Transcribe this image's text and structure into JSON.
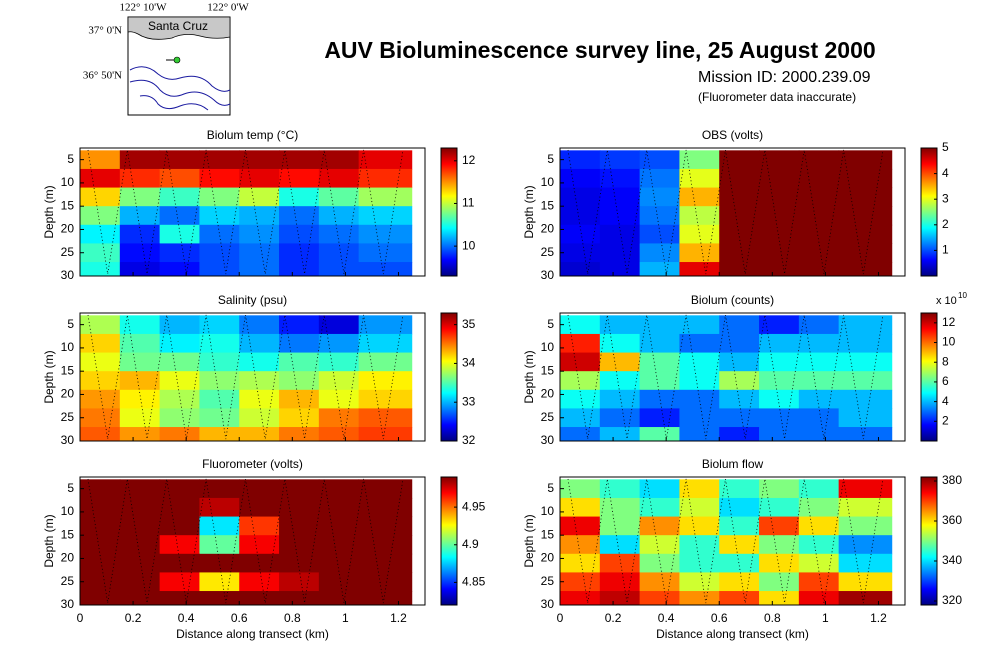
{
  "header": {
    "title": "AUV Bioluminescence survey line, 25 August 2000",
    "mission": "Mission ID: 2000.239.09",
    "note": "(Fluorometer data inaccurate)"
  },
  "map": {
    "lon_labels": [
      "122° 10'W",
      "122° 0'W"
    ],
    "lat_labels": [
      "37° 0'N",
      "36° 50'N"
    ],
    "place": "Santa Cruz"
  },
  "chart_data": [
    {
      "type": "heatmap",
      "title": "Biolum temp (°C)",
      "ylabel": "Depth (m)",
      "colormap": "jet",
      "xlim": [
        0,
        1.3
      ],
      "xticks": [
        0,
        0.2,
        0.4,
        0.6,
        0.8,
        1,
        1.2
      ],
      "ylim": [
        2.5,
        30
      ],
      "yticks": [
        5,
        10,
        15,
        20,
        25,
        30
      ],
      "clim": [
        9.3,
        12.3
      ],
      "cticks": [
        10,
        11,
        12
      ],
      "x_bins": [
        0,
        0.15,
        0.3,
        0.45,
        0.6,
        0.75,
        0.9,
        1.05,
        1.25
      ],
      "depth_bins": [
        3,
        7,
        11,
        15,
        19,
        23,
        27,
        30
      ],
      "values": [
        [
          11.5,
          12.2,
          12.2,
          12.2,
          12.2,
          12.2,
          12.2,
          12.0
        ],
        [
          12.0,
          11.8,
          11.7,
          11.9,
          12.0,
          11.9,
          12.0,
          11.8
        ],
        [
          11.3,
          10.8,
          10.6,
          10.8,
          11.0,
          10.5,
          10.7,
          10.9
        ],
        [
          10.8,
          10.2,
          10.0,
          10.3,
          10.2,
          10.0,
          10.2,
          10.3
        ],
        [
          10.4,
          9.8,
          10.5,
          10.0,
          10.1,
          9.9,
          10.0,
          10.1
        ],
        [
          10.6,
          9.7,
          9.8,
          9.9,
          10.0,
          9.8,
          9.9,
          10.0
        ],
        [
          10.5,
          9.6,
          9.7,
          9.9,
          10.0,
          9.8,
          9.9,
          9.9
        ]
      ]
    },
    {
      "type": "heatmap",
      "title": "OBS (volts)",
      "ylabel": "Depth (m)",
      "colormap": "jet",
      "xlim": [
        0,
        1.3
      ],
      "xticks": [
        0,
        0.2,
        0.4,
        0.6,
        0.8,
        1,
        1.2
      ],
      "ylim": [
        2.5,
        30
      ],
      "yticks": [
        5,
        10,
        15,
        20,
        25,
        30
      ],
      "clim": [
        0,
        5
      ],
      "cticks": [
        1,
        2,
        3,
        4,
        5
      ],
      "x_bins": [
        0,
        0.15,
        0.3,
        0.45,
        0.6,
        0.75,
        0.9,
        1.05,
        1.25
      ],
      "depth_bins": [
        3,
        7,
        11,
        15,
        19,
        23,
        27,
        30
      ],
      "values": [
        [
          0.8,
          0.9,
          1.0,
          2.5,
          5,
          5,
          5,
          5
        ],
        [
          0.6,
          0.7,
          1.2,
          3.0,
          5,
          5,
          5,
          5
        ],
        [
          0.5,
          0.6,
          1.3,
          3.5,
          5,
          5,
          5,
          5
        ],
        [
          0.5,
          0.6,
          1.2,
          2.8,
          5,
          5,
          5,
          5
        ],
        [
          0.6,
          0.5,
          1.0,
          3.0,
          5,
          5,
          5,
          5
        ],
        [
          0.5,
          0.5,
          1.3,
          3.5,
          5,
          5,
          5,
          5
        ],
        [
          0.4,
          0.5,
          1.5,
          4.5,
          5,
          5,
          5,
          5
        ]
      ]
    },
    {
      "type": "heatmap",
      "title": "Salinity (psu)",
      "ylabel": "Depth (m)",
      "colormap": "jet",
      "xlim": [
        0,
        1.3
      ],
      "xticks": [
        0,
        0.2,
        0.4,
        0.6,
        0.8,
        1,
        1.2
      ],
      "ylim": [
        2.5,
        30
      ],
      "yticks": [
        5,
        10,
        15,
        20,
        25,
        30
      ],
      "clim": [
        32,
        35.3
      ],
      "cticks": [
        32,
        33,
        34,
        35
      ],
      "x_bins": [
        0,
        0.15,
        0.3,
        0.45,
        0.6,
        0.75,
        0.9,
        1.05,
        1.25
      ],
      "depth_bins": [
        3,
        7,
        11,
        15,
        19,
        23,
        27,
        30
      ],
      "values": [
        [
          33.8,
          33.3,
          33.0,
          33.1,
          32.8,
          32.5,
          32.3,
          32.9
        ],
        [
          34.2,
          33.5,
          33.2,
          33.3,
          33.0,
          32.8,
          32.9,
          33.1
        ],
        [
          34.0,
          33.6,
          33.6,
          33.4,
          33.3,
          33.5,
          33.4,
          33.6
        ],
        [
          34.2,
          34.3,
          34.0,
          33.7,
          33.8,
          33.7,
          33.9,
          34.1
        ],
        [
          34.4,
          34.1,
          33.8,
          33.5,
          34.0,
          34.3,
          34.0,
          34.2
        ],
        [
          34.5,
          34.0,
          33.7,
          33.6,
          33.9,
          34.2,
          34.5,
          34.6
        ],
        [
          34.6,
          34.4,
          34.5,
          34.3,
          34.3,
          34.5,
          34.6,
          34.7
        ]
      ]
    },
    {
      "type": "heatmap",
      "title": "Biolum (counts)",
      "ylabel": "Depth (m)",
      "colormap": "jet",
      "xlim": [
        0,
        1.3
      ],
      "xticks": [
        0,
        0.2,
        0.4,
        0.6,
        0.8,
        1,
        1.2
      ],
      "ylim": [
        2.5,
        30
      ],
      "yticks": [
        5,
        10,
        15,
        20,
        25,
        30
      ],
      "clim": [
        0,
        13
      ],
      "cticks": [
        2,
        4,
        6,
        8,
        10,
        12
      ],
      "multiplier": "x 10",
      "multiplier_exponent": "10",
      "x_bins": [
        0,
        0.15,
        0.3,
        0.45,
        0.6,
        0.75,
        0.9,
        1.05,
        1.25
      ],
      "depth_bins": [
        3,
        7,
        11,
        15,
        19,
        23,
        27,
        30
      ],
      "values": [
        [
          5,
          4,
          4,
          4,
          3,
          2,
          3,
          4
        ],
        [
          11,
          5,
          4,
          3,
          3,
          4,
          4,
          4
        ],
        [
          12,
          9,
          6,
          5,
          4,
          5,
          5,
          5
        ],
        [
          7,
          5,
          6,
          5,
          7,
          6,
          6,
          6
        ],
        [
          5,
          4,
          3,
          3,
          4,
          5,
          4,
          4
        ],
        [
          4,
          3,
          2,
          3,
          3,
          3,
          3,
          4
        ],
        [
          3,
          4,
          6,
          3,
          2,
          3,
          3,
          3
        ]
      ]
    },
    {
      "type": "heatmap",
      "title": "Fluorometer (volts)",
      "ylabel": "Depth (m)",
      "xlabel": "Distance along transect (km)",
      "colormap": "jet",
      "xlim": [
        0,
        1.3
      ],
      "xticks": [
        0,
        0.2,
        0.4,
        0.6,
        0.8,
        1,
        1.2
      ],
      "ylim": [
        2.5,
        30
      ],
      "yticks": [
        5,
        10,
        15,
        20,
        25,
        30
      ],
      "clim": [
        4.82,
        4.99
      ],
      "cticks": [
        4.85,
        4.9,
        4.95
      ],
      "x_bins": [
        0,
        0.15,
        0.3,
        0.45,
        0.6,
        0.75,
        0.9,
        1.05,
        1.25
      ],
      "depth_bins": [
        3,
        7,
        11,
        15,
        19,
        23,
        27,
        30
      ],
      "values": [
        [
          4.99,
          4.99,
          4.99,
          4.99,
          4.99,
          4.99,
          4.99,
          4.99
        ],
        [
          4.99,
          4.99,
          4.99,
          4.98,
          4.99,
          4.99,
          4.99,
          4.99
        ],
        [
          4.99,
          4.99,
          4.99,
          4.88,
          4.96,
          4.99,
          4.99,
          4.99
        ],
        [
          4.99,
          4.99,
          4.97,
          4.9,
          4.97,
          4.99,
          4.99,
          4.99
        ],
        [
          4.99,
          4.99,
          4.99,
          4.99,
          4.99,
          4.99,
          4.99,
          4.99
        ],
        [
          4.99,
          4.99,
          4.97,
          4.93,
          4.97,
          4.98,
          4.99,
          4.99
        ],
        [
          4.99,
          4.99,
          4.99,
          4.99,
          4.99,
          4.99,
          4.99,
          4.99
        ]
      ]
    },
    {
      "type": "heatmap",
      "title": "Biolum flow",
      "ylabel": "Depth (m)",
      "xlabel": "Distance along transect (km)",
      "colormap": "jet",
      "xlim": [
        0,
        1.3
      ],
      "xticks": [
        0,
        0.2,
        0.4,
        0.6,
        0.8,
        1,
        1.2
      ],
      "ylim": [
        2.5,
        30
      ],
      "yticks": [
        5,
        10,
        15,
        20,
        25,
        30
      ],
      "clim": [
        318,
        382
      ],
      "cticks": [
        320,
        340,
        360,
        380
      ],
      "x_bins": [
        0,
        0.15,
        0.3,
        0.45,
        0.6,
        0.75,
        0.9,
        1.05,
        1.25
      ],
      "depth_bins": [
        3,
        7,
        11,
        15,
        19,
        23,
        27,
        30
      ],
      "values": [
        [
          350,
          345,
          340,
          360,
          345,
          350,
          345,
          375
        ],
        [
          360,
          350,
          345,
          355,
          340,
          345,
          350,
          355
        ],
        [
          375,
          350,
          365,
          360,
          345,
          370,
          360,
          350
        ],
        [
          365,
          340,
          355,
          345,
          360,
          350,
          345,
          335
        ],
        [
          360,
          370,
          350,
          345,
          345,
          360,
          355,
          340
        ],
        [
          370,
          375,
          365,
          355,
          360,
          350,
          370,
          360
        ],
        [
          375,
          378,
          370,
          365,
          370,
          360,
          375,
          380
        ]
      ]
    }
  ]
}
